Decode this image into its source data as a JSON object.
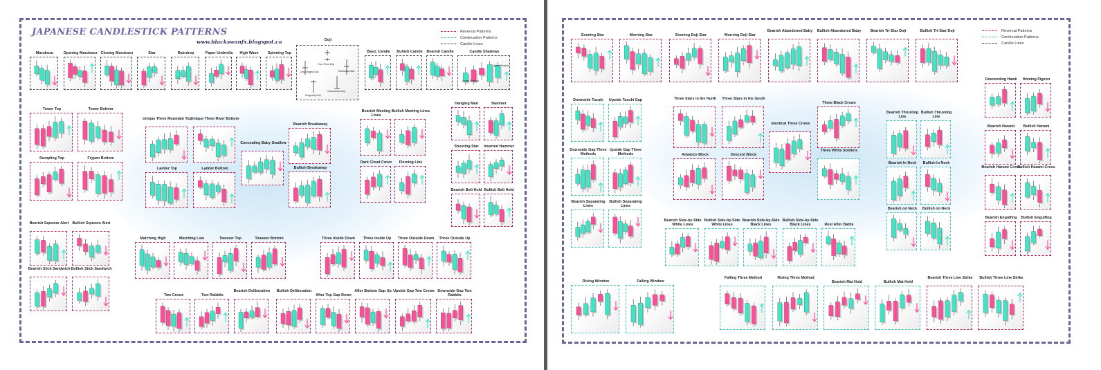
{
  "poster": {
    "title": "JAPANESE CANDLESTICK PATTERNS",
    "subtitle": "www.blackswanfx.blogspot.ca",
    "legend": [
      "Reversal Patterns",
      "Continuation Patterns",
      "Candle Lines"
    ]
  },
  "colors": {
    "bull": "#3ee6c8",
    "bear": "#ff4d9a",
    "reversal_border": "#b02a68",
    "continuation_border": "#3ebfb5",
    "candle_line_border": "#4a4a4a",
    "frame": "#6e6396"
  },
  "doji_box": {
    "title": "Doji",
    "labels": [
      "Four-Price Doji",
      "Long-legged Doji",
      "Rickshaw Man",
      "Dragonfly Doji",
      "Gravestone Doji"
    ]
  },
  "candle_shadows_labels": [
    "Upper Shadow",
    "Lower Shadow"
  ],
  "left_patterns": [
    "Marubozu",
    "Opening Marubozu",
    "Closing Marubozu",
    "Star",
    "Raindrop",
    "Paper Umbrella",
    "High Wave",
    "Spinning Top",
    "Basic Candle",
    "Bullish Candle",
    "Bearish Candle",
    "Candle Shadows",
    "Tower Top",
    "Tower Bottom",
    "Dumpling Top",
    "Frypan Bottom",
    "Unique Three Mountain Top",
    "Unique Three River Bottom",
    "Ladder Top",
    "Ladder Bottom",
    "Concealing Baby Swallow",
    "Bearish Breakaway",
    "Bullish Breakaway",
    "Bearish Meeting Lines",
    "Bullish Meeting Lines",
    "Dark Cloud Cover",
    "Piercing Line",
    "Hanging Man",
    "Hammer",
    "Shooting Star",
    "Inverted Hammer",
    "Bearish Belt Hold",
    "Bullish Belt Hold",
    "Bearish Squeeze Alert",
    "Bullish Squeeze Alert",
    "Bearish Stick Sandwich",
    "Bullish Stick Sandwich",
    "Matching High",
    "Matching Low",
    "Tweezer Top",
    "Tweezer Bottom",
    "Three Inside Down",
    "Three Inside Up",
    "Three Outside Down",
    "Three Outside Up",
    "Two Crows",
    "Two Rabbits",
    "Bearish Deliberation",
    "Bullish Deliberation",
    "After Top Gap Down",
    "After Bottom Gap Up",
    "Upside Gap Two Crows",
    "Downside Gap Two Rabbits"
  ],
  "right_patterns": [
    "Evening Star",
    "Morning Star",
    "Evening Doji Star",
    "Morning Doji Star",
    "Bearish Abandoned Baby",
    "Bullish Abandoned Baby",
    "Bearish Tri-Star Doji",
    "Bullish Tri-Star Doji",
    "Downside Tasuki",
    "Upside Tasuki Gap",
    "Downside Gap Three Methods",
    "Upside Gap Three Methods",
    "Bearish Separating Lines",
    "Bullish Separating Lines",
    "Three Stars in the North",
    "Three Stars in the South",
    "Three Black Crows",
    "Identical Three Crows",
    "Advance Block",
    "Descent Block",
    "Three White Soldiers",
    "Bearish Thrusting Line",
    "Bullish Thrusting Line",
    "Bearish In Neck",
    "Bullish In Neck",
    "Bearish on Neck",
    "Bullish on Neck",
    "Descending Hawk",
    "Homing Pigeon",
    "Bearish Harami",
    "Bullish Harami",
    "Bearish Harami Cross",
    "Bullish Harami Cross",
    "Bearish Engulfing",
    "Bullish Engulfing",
    "Bearish Side-by-Side White Lines",
    "Bullish Side-by-Side White Lines",
    "Bearish Side-by-Side Black Lines",
    "Bullish Side-by-Side Black Lines",
    "Rest After Battle",
    "Rising Window",
    "Falling Window",
    "Falling Three Method",
    "Rising Three Method",
    "Bearish Mat Hold",
    "Bullish Mat Hold",
    "Bearish Three Line Strike",
    "Bullish Three Line Strike"
  ]
}
